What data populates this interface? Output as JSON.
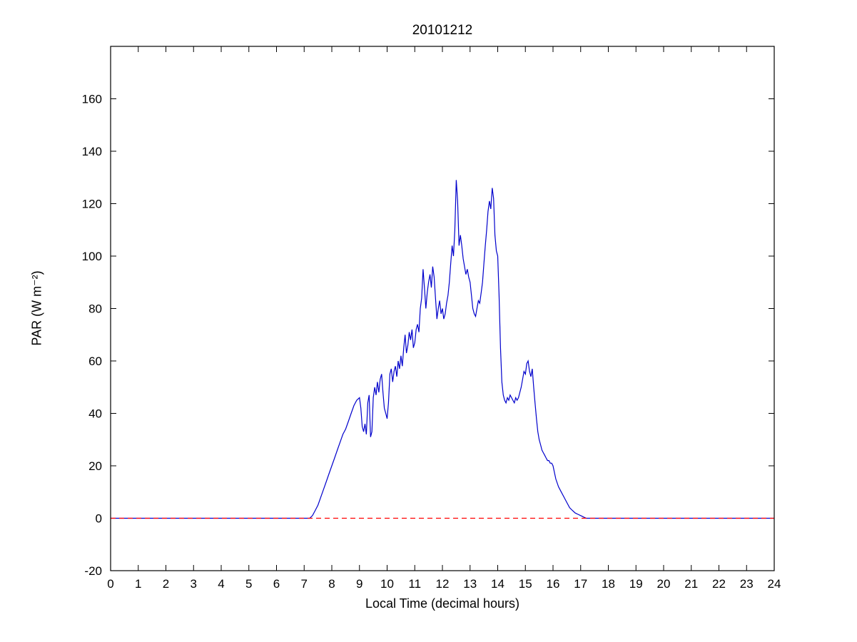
{
  "chart_data": {
    "type": "line",
    "title": "20101212",
    "xlabel": "Local Time (decimal hours)",
    "ylabel": "PAR (W m⁻²)",
    "xlim": [
      0,
      24
    ],
    "ylim": [
      -20,
      180
    ],
    "xticks": [
      0,
      1,
      2,
      3,
      4,
      5,
      6,
      7,
      8,
      9,
      10,
      11,
      12,
      13,
      14,
      15,
      16,
      17,
      18,
      19,
      20,
      21,
      22,
      23,
      24
    ],
    "yticks": [
      -20,
      0,
      20,
      40,
      60,
      80,
      100,
      120,
      140,
      160
    ],
    "grid": false,
    "legend": "none",
    "series": [
      {
        "name": "par",
        "color": "#0000cc",
        "style": "solid",
        "points": [
          [
            0,
            0
          ],
          [
            7.2,
            0
          ],
          [
            7.3,
            1
          ],
          [
            7.4,
            3
          ],
          [
            7.5,
            5
          ],
          [
            7.6,
            8
          ],
          [
            7.7,
            11
          ],
          [
            7.8,
            14
          ],
          [
            7.9,
            17
          ],
          [
            8.0,
            20
          ],
          [
            8.1,
            23
          ],
          [
            8.2,
            26
          ],
          [
            8.3,
            29
          ],
          [
            8.4,
            32
          ],
          [
            8.5,
            34
          ],
          [
            8.6,
            37
          ],
          [
            8.7,
            40
          ],
          [
            8.8,
            43
          ],
          [
            8.9,
            45
          ],
          [
            9.0,
            46
          ],
          [
            9.05,
            42
          ],
          [
            9.1,
            35
          ],
          [
            9.15,
            33
          ],
          [
            9.2,
            36
          ],
          [
            9.25,
            32
          ],
          [
            9.3,
            44
          ],
          [
            9.35,
            47
          ],
          [
            9.4,
            31
          ],
          [
            9.45,
            33
          ],
          [
            9.5,
            46
          ],
          [
            9.55,
            50
          ],
          [
            9.6,
            47
          ],
          [
            9.65,
            52
          ],
          [
            9.7,
            48
          ],
          [
            9.75,
            53
          ],
          [
            9.8,
            55
          ],
          [
            9.85,
            48
          ],
          [
            9.9,
            42
          ],
          [
            9.95,
            40
          ],
          [
            10.0,
            38
          ],
          [
            10.05,
            44
          ],
          [
            10.1,
            55
          ],
          [
            10.15,
            57
          ],
          [
            10.2,
            52
          ],
          [
            10.25,
            56
          ],
          [
            10.3,
            58
          ],
          [
            10.35,
            54
          ],
          [
            10.4,
            60
          ],
          [
            10.45,
            57
          ],
          [
            10.5,
            62
          ],
          [
            10.55,
            58
          ],
          [
            10.6,
            65
          ],
          [
            10.65,
            70
          ],
          [
            10.7,
            63
          ],
          [
            10.75,
            66
          ],
          [
            10.8,
            71
          ],
          [
            10.85,
            68
          ],
          [
            10.9,
            72
          ],
          [
            10.95,
            65
          ],
          [
            11.0,
            67
          ],
          [
            11.05,
            72
          ],
          [
            11.1,
            74
          ],
          [
            11.15,
            71
          ],
          [
            11.2,
            80
          ],
          [
            11.25,
            84
          ],
          [
            11.3,
            95
          ],
          [
            11.35,
            88
          ],
          [
            11.4,
            80
          ],
          [
            11.45,
            86
          ],
          [
            11.5,
            90
          ],
          [
            11.55,
            93
          ],
          [
            11.6,
            88
          ],
          [
            11.65,
            96
          ],
          [
            11.7,
            92
          ],
          [
            11.75,
            84
          ],
          [
            11.8,
            76
          ],
          [
            11.85,
            80
          ],
          [
            11.9,
            83
          ],
          [
            11.95,
            78
          ],
          [
            12.0,
            80
          ],
          [
            12.05,
            76
          ],
          [
            12.1,
            78
          ],
          [
            12.15,
            82
          ],
          [
            12.2,
            85
          ],
          [
            12.25,
            90
          ],
          [
            12.3,
            97
          ],
          [
            12.35,
            104
          ],
          [
            12.4,
            100
          ],
          [
            12.45,
            110
          ],
          [
            12.5,
            129
          ],
          [
            12.55,
            121
          ],
          [
            12.6,
            104
          ],
          [
            12.65,
            108
          ],
          [
            12.7,
            104
          ],
          [
            12.75,
            99
          ],
          [
            12.8,
            96
          ],
          [
            12.85,
            93
          ],
          [
            12.9,
            95
          ],
          [
            12.95,
            92
          ],
          [
            13.0,
            90
          ],
          [
            13.05,
            85
          ],
          [
            13.1,
            80
          ],
          [
            13.15,
            78
          ],
          [
            13.2,
            77
          ],
          [
            13.25,
            80
          ],
          [
            13.3,
            83
          ],
          [
            13.35,
            82
          ],
          [
            13.4,
            86
          ],
          [
            13.45,
            90
          ],
          [
            13.5,
            97
          ],
          [
            13.55,
            104
          ],
          [
            13.6,
            110
          ],
          [
            13.65,
            117
          ],
          [
            13.7,
            121
          ],
          [
            13.75,
            118
          ],
          [
            13.8,
            126
          ],
          [
            13.85,
            122
          ],
          [
            13.9,
            108
          ],
          [
            13.95,
            102
          ],
          [
            14.0,
            100
          ],
          [
            14.05,
            85
          ],
          [
            14.1,
            65
          ],
          [
            14.15,
            52
          ],
          [
            14.2,
            47
          ],
          [
            14.25,
            45
          ],
          [
            14.3,
            44
          ],
          [
            14.35,
            46
          ],
          [
            14.4,
            45
          ],
          [
            14.45,
            47
          ],
          [
            14.5,
            46
          ],
          [
            14.55,
            45
          ],
          [
            14.6,
            44
          ],
          [
            14.65,
            46
          ],
          [
            14.7,
            45
          ],
          [
            14.75,
            46
          ],
          [
            14.8,
            48
          ],
          [
            14.85,
            50
          ],
          [
            14.9,
            53
          ],
          [
            14.95,
            56
          ],
          [
            15.0,
            55
          ],
          [
            15.05,
            59
          ],
          [
            15.1,
            60
          ],
          [
            15.15,
            56
          ],
          [
            15.2,
            54
          ],
          [
            15.25,
            57
          ],
          [
            15.3,
            50
          ],
          [
            15.35,
            44
          ],
          [
            15.4,
            38
          ],
          [
            15.45,
            33
          ],
          [
            15.5,
            30
          ],
          [
            15.55,
            28
          ],
          [
            15.6,
            26
          ],
          [
            15.65,
            25
          ],
          [
            15.7,
            24
          ],
          [
            15.75,
            23
          ],
          [
            15.8,
            22
          ],
          [
            15.85,
            22
          ],
          [
            15.9,
            21
          ],
          [
            15.95,
            21
          ],
          [
            16.0,
            20
          ],
          [
            16.1,
            15
          ],
          [
            16.2,
            12
          ],
          [
            16.3,
            10
          ],
          [
            16.4,
            8
          ],
          [
            16.5,
            6
          ],
          [
            16.6,
            4
          ],
          [
            16.7,
            3
          ],
          [
            16.8,
            2
          ],
          [
            16.9,
            1.5
          ],
          [
            17.0,
            1
          ],
          [
            17.1,
            0.5
          ],
          [
            17.2,
            0
          ],
          [
            17.3,
            0
          ],
          [
            24,
            0
          ]
        ]
      },
      {
        "name": "zero-reference",
        "color": "#ff0000",
        "style": "dashed",
        "points": [
          [
            0,
            0
          ],
          [
            24,
            0
          ]
        ]
      }
    ]
  }
}
